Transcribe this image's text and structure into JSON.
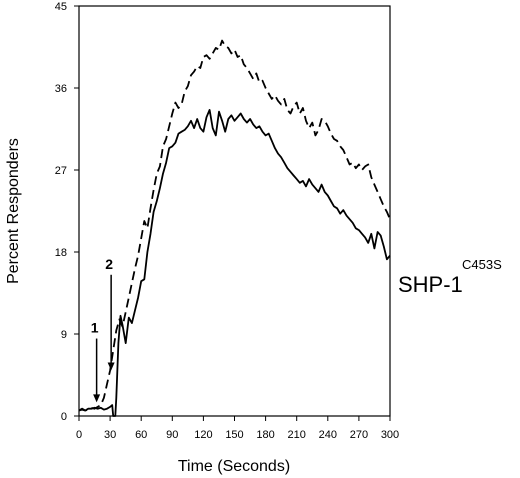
{
  "chart_data": {
    "type": "line",
    "title": "",
    "xlabel": "Time (Seconds)",
    "ylabel": "Percent Responders",
    "xlim": [
      0,
      300
    ],
    "ylim": [
      0,
      45
    ],
    "xticks": [
      0,
      30,
      60,
      90,
      120,
      150,
      180,
      210,
      240,
      270,
      300
    ],
    "yticks": [
      0,
      9,
      18,
      27,
      36,
      45
    ],
    "grid": false,
    "legend": "none",
    "label": {
      "main": "SHP-1",
      "superscript": "C453S"
    },
    "annotations": [
      {
        "text": "1",
        "x": 17,
        "y_tip": 1.5,
        "y_top": 8.5
      },
      {
        "text": "2",
        "x": 31,
        "y_tip": 5.0,
        "y_top": 15.5
      }
    ],
    "series": [
      {
        "style": "dashed",
        "x": [
          0,
          3,
          6,
          9,
          12,
          15,
          18,
          21,
          24,
          27,
          30,
          33,
          36,
          39,
          42,
          45,
          48,
          51,
          54,
          57,
          60,
          63,
          66,
          69,
          72,
          75,
          78,
          81,
          84,
          87,
          90,
          93,
          96,
          99,
          102,
          105,
          108,
          111,
          114,
          117,
          120,
          123,
          126,
          129,
          132,
          135,
          138,
          141,
          144,
          147,
          150,
          153,
          156,
          159,
          162,
          165,
          168,
          171,
          174,
          177,
          180,
          183,
          186,
          189,
          192,
          195,
          198,
          201,
          204,
          207,
          210,
          213,
          216,
          219,
          222,
          225,
          228,
          231,
          234,
          237,
          240,
          243,
          246,
          249,
          252,
          255,
          258,
          261,
          264,
          267,
          270,
          273,
          276,
          279,
          282,
          285,
          288,
          291,
          294,
          297,
          300
        ],
        "y": [
          0.6,
          0.8,
          0.6,
          0.7,
          0.9,
          0.8,
          1.0,
          1.2,
          2.0,
          3.5,
          5.0,
          7.2,
          9.4,
          10.6,
          9.8,
          11.4,
          13.0,
          14.6,
          16.2,
          17.6,
          19.5,
          21.4,
          20.6,
          22.8,
          24.8,
          26.6,
          27.4,
          29.6,
          30.4,
          31.8,
          33.2,
          34.4,
          33.8,
          34.2,
          35.6,
          36.2,
          37.4,
          37.8,
          38.4,
          38.2,
          39.4,
          39.6,
          39.2,
          39.8,
          40.4,
          40.2,
          41.2,
          40.6,
          40.4,
          39.8,
          40.2,
          39.4,
          39.6,
          38.6,
          38.2,
          37.6,
          37.0,
          37.6,
          36.6,
          36.8,
          36.0,
          35.4,
          34.8,
          35.2,
          34.6,
          34.2,
          34.8,
          33.6,
          33.2,
          34.0,
          34.4,
          33.2,
          33.8,
          32.4,
          31.6,
          32.2,
          30.8,
          31.4,
          32.6,
          32.4,
          31.8,
          31.0,
          30.4,
          30.2,
          29.6,
          29.2,
          28.4,
          27.6,
          27.8,
          27.2,
          27.6,
          27.0,
          27.4,
          27.6,
          26.2,
          25.4,
          24.6,
          23.8,
          23.0,
          22.4,
          21.6
        ]
      },
      {
        "style": "solid",
        "x": [
          0,
          3,
          6,
          9,
          12,
          15,
          18,
          21,
          24,
          27,
          30,
          32,
          33,
          34,
          35,
          36,
          38,
          40,
          42,
          45,
          48,
          51,
          54,
          57,
          60,
          63,
          66,
          69,
          72,
          75,
          78,
          81,
          84,
          87,
          90,
          93,
          96,
          99,
          102,
          105,
          108,
          111,
          114,
          117,
          120,
          123,
          126,
          129,
          132,
          135,
          138,
          141,
          144,
          147,
          150,
          153,
          156,
          159,
          162,
          165,
          168,
          171,
          174,
          177,
          180,
          183,
          186,
          189,
          192,
          195,
          198,
          201,
          204,
          207,
          210,
          213,
          216,
          219,
          222,
          225,
          228,
          231,
          234,
          237,
          240,
          243,
          246,
          249,
          252,
          255,
          258,
          261,
          264,
          267,
          270,
          273,
          276,
          279,
          282,
          285,
          288,
          291,
          294,
          297,
          300
        ],
        "y": [
          0.6,
          0.7,
          0.6,
          0.8,
          0.8,
          0.9,
          0.8,
          0.9,
          0.7,
          0.8,
          1.0,
          1.2,
          0.0,
          0.0,
          0.0,
          2.0,
          8.0,
          11.0,
          10.0,
          8.0,
          10.8,
          10.2,
          11.6,
          13.0,
          14.8,
          15.0,
          18.0,
          20.0,
          22.4,
          23.6,
          25.0,
          26.6,
          27.8,
          29.4,
          29.6,
          30.0,
          31.0,
          31.2,
          31.4,
          31.8,
          32.4,
          31.6,
          32.6,
          31.6,
          31.2,
          32.8,
          33.6,
          31.6,
          30.8,
          33.4,
          32.4,
          31.2,
          32.6,
          33.0,
          32.4,
          32.8,
          33.2,
          32.6,
          32.2,
          32.6,
          32.0,
          31.6,
          31.8,
          31.2,
          30.8,
          31.0,
          30.2,
          29.4,
          28.8,
          28.4,
          27.8,
          27.2,
          26.8,
          26.4,
          26.0,
          25.6,
          25.8,
          25.2,
          26.0,
          25.4,
          25.0,
          24.6,
          25.4,
          24.6,
          24.2,
          23.6,
          23.0,
          22.8,
          22.2,
          22.6,
          22.0,
          21.6,
          21.2,
          20.6,
          20.4,
          20.0,
          19.6,
          19.0,
          20.0,
          18.4,
          20.2,
          19.8,
          18.6,
          17.2,
          17.6
        ]
      }
    ]
  }
}
